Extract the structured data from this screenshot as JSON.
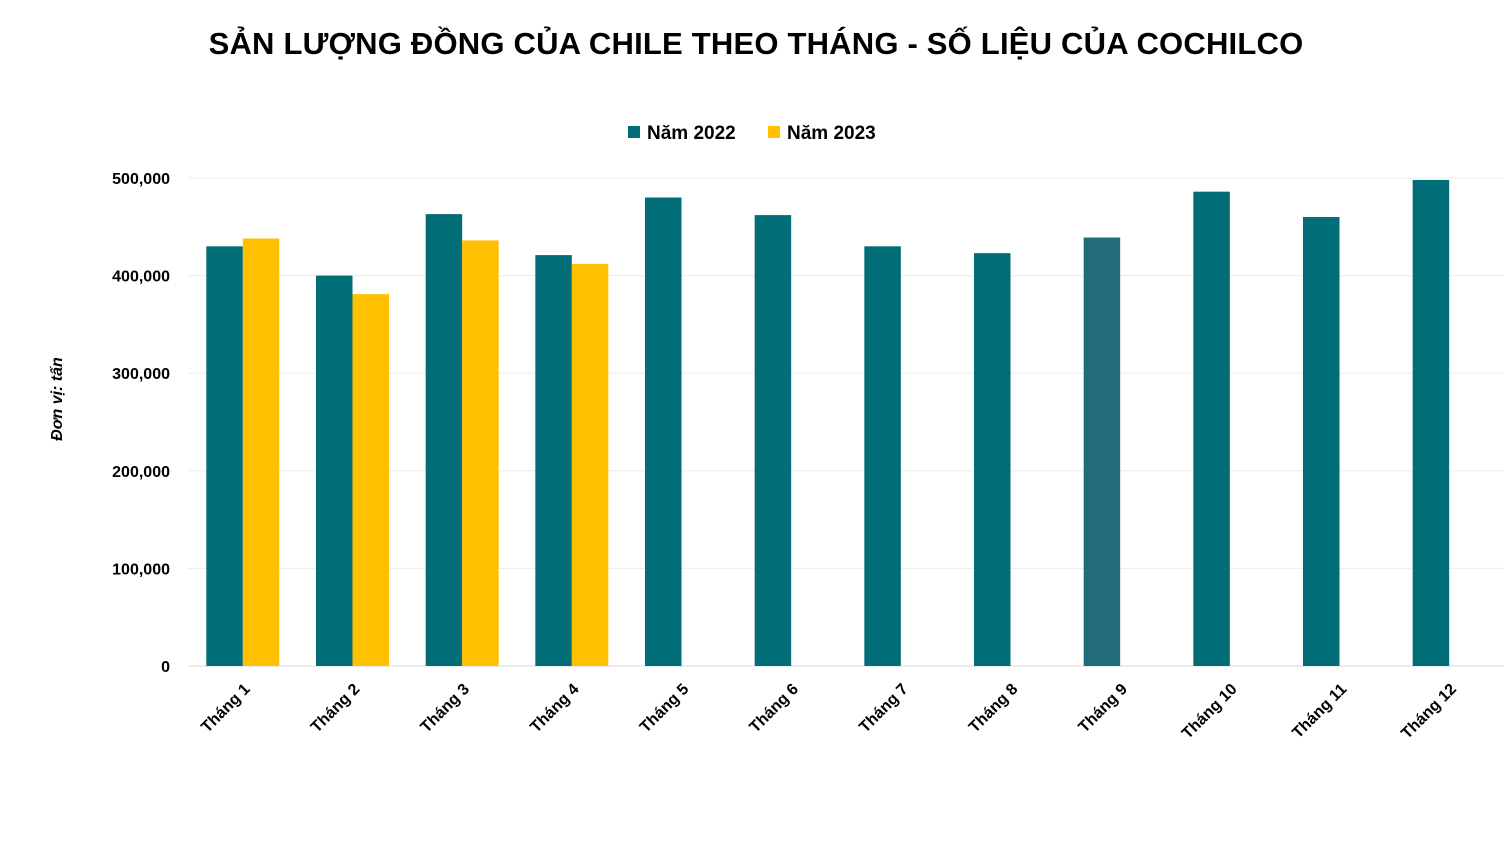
{
  "chart_data": {
    "type": "bar",
    "title": "SẢN LƯỢNG ĐỒNG CỦA CHILE THEO THÁNG - SỐ LIỆU CỦA COCHILCO",
    "ylabel": "Đơn vị: tấn",
    "xlabel": "",
    "categories": [
      "Tháng 1",
      "Tháng 2",
      "Tháng 3",
      "Tháng 4",
      "Tháng 5",
      "Tháng 6",
      "Tháng 7",
      "Tháng 8",
      "Tháng 9",
      "Tháng 10",
      "Tháng 11",
      "Tháng 12"
    ],
    "series": [
      {
        "name": "Năm 2022",
        "color": "#006d77",
        "values": [
          430000,
          400000,
          463000,
          421000,
          480000,
          462000,
          430000,
          423000,
          439000,
          486000,
          460000,
          498000
        ]
      },
      {
        "name": "Năm 2023",
        "color": "#ffc000",
        "values": [
          438000,
          381000,
          436000,
          412000,
          null,
          null,
          null,
          null,
          null,
          null,
          null,
          null
        ]
      }
    ],
    "ylim": [
      0,
      500000
    ],
    "yticks": [
      "0",
      "100,000",
      "200,000",
      "300,000",
      "400,000",
      "500,000"
    ],
    "ytick_values": [
      0,
      100000,
      200000,
      300000,
      400000,
      500000
    ],
    "grid": true,
    "legend_position": "top-center",
    "highlight": {
      "series": 0,
      "category": 8,
      "color": "#216b7a"
    }
  }
}
